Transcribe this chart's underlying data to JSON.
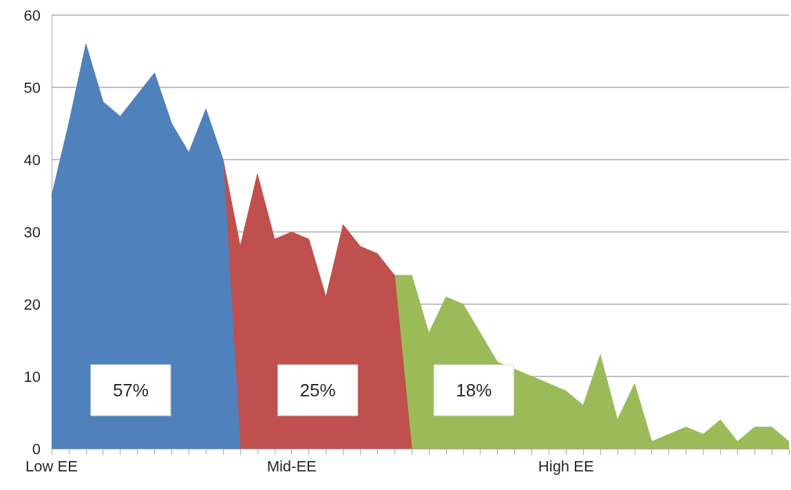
{
  "chart_data": {
    "type": "area",
    "categories": [
      "Low EE",
      null,
      null,
      null,
      null,
      null,
      null,
      null,
      null,
      null,
      null,
      null,
      null,
      null,
      "Mid-EE",
      null,
      null,
      null,
      null,
      null,
      null,
      null,
      null,
      null,
      null,
      null,
      null,
      null,
      null,
      null,
      "High EE",
      null,
      null,
      null,
      null,
      null,
      null,
      null,
      null,
      null,
      null,
      null,
      null,
      null
    ],
    "series": [
      {
        "color": "#4f81bd",
        "values": [
          35,
          45,
          56,
          48,
          46,
          49,
          52,
          45,
          41,
          47,
          40,
          0,
          null,
          null,
          null,
          null,
          null,
          null,
          null,
          null,
          null,
          null,
          null,
          null,
          null,
          null,
          null,
          null,
          null,
          null,
          null,
          null,
          null,
          null,
          null,
          null,
          null,
          null,
          null,
          null,
          null,
          null,
          null,
          null
        ]
      },
      {
        "color": "#c0504d",
        "values": [
          null,
          null,
          null,
          null,
          null,
          null,
          null,
          null,
          null,
          null,
          40,
          28,
          38,
          29,
          30,
          29,
          21,
          31,
          28,
          27,
          24,
          0,
          null,
          null,
          null,
          null,
          null,
          null,
          null,
          null,
          null,
          null,
          null,
          null,
          null,
          null,
          null,
          null,
          null,
          null,
          null,
          null,
          null,
          null
        ]
      },
      {
        "color": "#9bbb59",
        "values": [
          null,
          null,
          null,
          null,
          null,
          null,
          null,
          null,
          null,
          null,
          null,
          null,
          null,
          null,
          null,
          null,
          null,
          null,
          null,
          null,
          24,
          24,
          16,
          21,
          20,
          16,
          12,
          11,
          10,
          9,
          8,
          6,
          13,
          4,
          9,
          1,
          2,
          3,
          2,
          4,
          1,
          3,
          3,
          1
        ]
      }
    ],
    "annotations": [
      "57%",
      "25%",
      "18%"
    ],
    "ylim": [
      0,
      60
    ],
    "yticks": [
      0,
      10,
      20,
      30,
      40,
      50,
      60
    ],
    "grid": "y"
  }
}
